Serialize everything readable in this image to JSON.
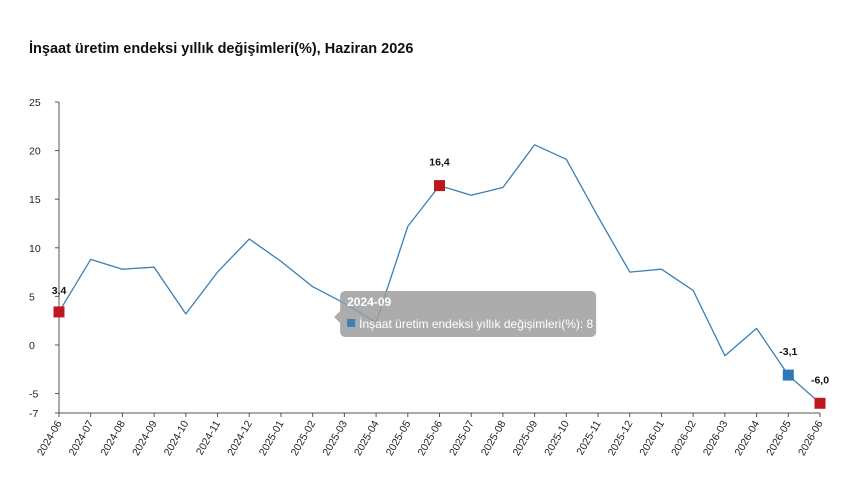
{
  "title": "İnşaat üretim endeksi yıllık değişimleri(%), Haziran 2026",
  "chart_data": {
    "type": "line",
    "title": "İnşaat üretim endeksi yıllık değişimleri(%), Haziran 2026",
    "xlabel": "",
    "ylabel": "",
    "ylim": [
      -7,
      25
    ],
    "yticks": [
      25,
      20,
      15,
      10,
      5,
      0,
      -5,
      -7
    ],
    "grid": false,
    "categories": [
      "2024-06",
      "2024-07",
      "2024-08",
      "2024-09",
      "2024-10",
      "2024-11",
      "2024-12",
      "2025-01",
      "2025-02",
      "2025-03",
      "2025-04",
      "2025-05",
      "2025-06",
      "2025-07",
      "2025-08",
      "2025-09",
      "2025-10",
      "2025-11",
      "2025-12",
      "2026-01",
      "2026-02",
      "2026-03",
      "2026-04",
      "2026-05",
      "2026-06"
    ],
    "series": [
      {
        "name": "İnşaat üretim endeksi yıllık değişimleri(%)",
        "color": "#3a7fb5",
        "values": [
          3.4,
          8.8,
          7.8,
          8.0,
          3.2,
          7.5,
          10.9,
          8.6,
          6.0,
          4.3,
          2.3,
          12.2,
          16.4,
          15.4,
          16.2,
          20.6,
          19.1,
          13.2,
          7.5,
          7.8,
          5.6,
          -1.1,
          1.7,
          -3.1,
          -6.0
        ]
      }
    ],
    "highlighted_points": [
      {
        "category": "2024-06",
        "value": 3.4,
        "label": "3,4",
        "color": "#c0171f"
      },
      {
        "category": "2025-06",
        "value": 16.4,
        "label": "16,4",
        "color": "#c0171f"
      },
      {
        "category": "2026-05",
        "value": -3.1,
        "label": "-3,1",
        "color": "#2e78b8"
      },
      {
        "category": "2026-06",
        "value": -6.0,
        "label": "-6,0",
        "color": "#c0171f"
      }
    ],
    "tooltip": {
      "header": "2024-09",
      "series_label": "İnşaat üretim endeksi yıllık değişimleri(%): 8",
      "marker_color": "#3a7fb5"
    }
  }
}
